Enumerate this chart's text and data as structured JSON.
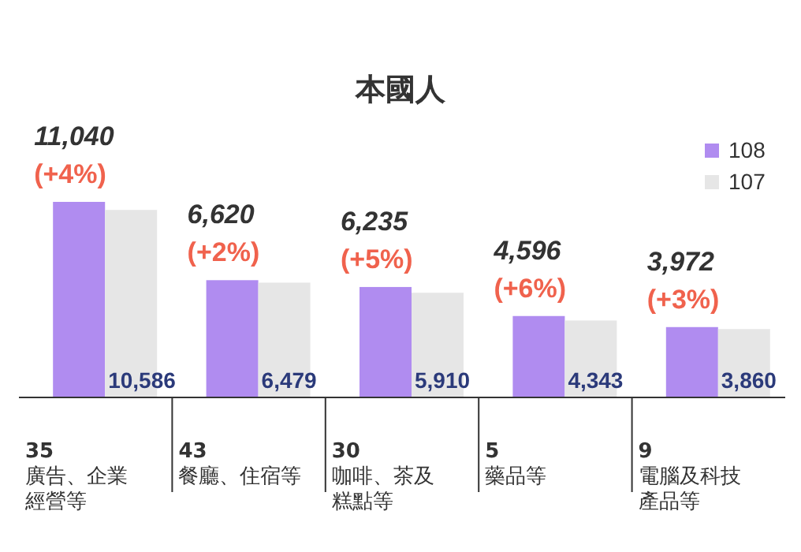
{
  "chart_data": {
    "type": "bar",
    "title": "本國人",
    "legend": "top right",
    "categories": [
      "35\n廣告、企業經營等",
      "43\n餐廳、住宿等",
      "30\n咖啡、茶及糕點等",
      "5\n藥品等",
      "9\n電腦及科技產品等"
    ],
    "series": [
      {
        "name": "108",
        "color": "#b08cf0",
        "values": [
          11040,
          6620,
          6235,
          4596,
          3972
        ],
        "value_labels": [
          "11,040\n(+4%)",
          "6,620\n(+2%)",
          "6,235\n(+5%)",
          "4,596\n(+6%)",
          "3,972\n(+3%)"
        ]
      },
      {
        "name": "107",
        "color": "#e6e6e6",
        "values": [
          10586,
          6479,
          5910,
          4343,
          3860
        ],
        "value_labels": [
          "10,586",
          "6,479",
          "5,910",
          "4,343",
          "3,860"
        ]
      }
    ]
  }
}
